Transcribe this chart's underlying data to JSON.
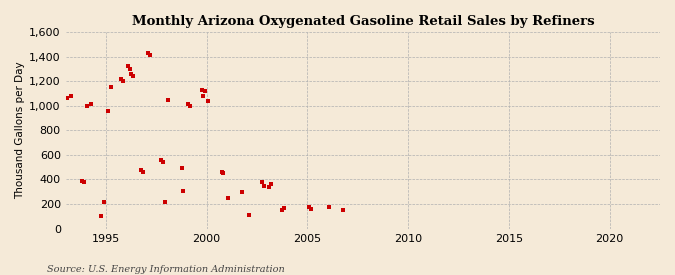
{
  "title": "Monthly Arizona Oxygenated Gasoline Retail Sales by Refiners",
  "ylabel": "Thousand Gallons per Day",
  "source": "Source: U.S. Energy Information Administration",
  "background_color": "#f5ead8",
  "dot_color": "#cc0000",
  "xlim": [
    1993.0,
    2022.5
  ],
  "ylim": [
    0,
    1600
  ],
  "xticks": [
    1995,
    2000,
    2005,
    2010,
    2015,
    2020
  ],
  "yticks": [
    0,
    200,
    400,
    600,
    800,
    1000,
    1200,
    1400,
    1600
  ],
  "x": [
    1993.08,
    1993.25,
    1993.83,
    1993.92,
    1994.08,
    1994.25,
    1994.75,
    1994.92,
    1995.08,
    1995.25,
    1995.75,
    1995.83,
    1996.08,
    1996.17,
    1996.25,
    1996.33,
    1996.75,
    1996.83,
    1997.08,
    1997.17,
    1997.75,
    1997.83,
    1997.92,
    1998.08,
    1998.75,
    1998.83,
    1999.08,
    1999.17,
    1999.75,
    1999.83,
    1999.92,
    2000.08,
    2000.75,
    2000.83,
    2001.08,
    2001.75,
    2002.08,
    2002.75,
    2002.83,
    2003.08,
    2003.17,
    2003.75,
    2003.83,
    2005.08,
    2005.17,
    2006.08,
    2006.75
  ],
  "y": [
    1060,
    1080,
    390,
    380,
    1000,
    1010,
    100,
    220,
    960,
    1150,
    1220,
    1200,
    1320,
    1300,
    1260,
    1240,
    480,
    460,
    1430,
    1410,
    560,
    540,
    220,
    1050,
    490,
    310,
    1010,
    1000,
    1130,
    1080,
    1120,
    1040,
    460,
    450,
    250,
    300,
    110,
    380,
    350,
    340,
    360,
    155,
    165,
    175,
    160,
    175,
    155
  ]
}
